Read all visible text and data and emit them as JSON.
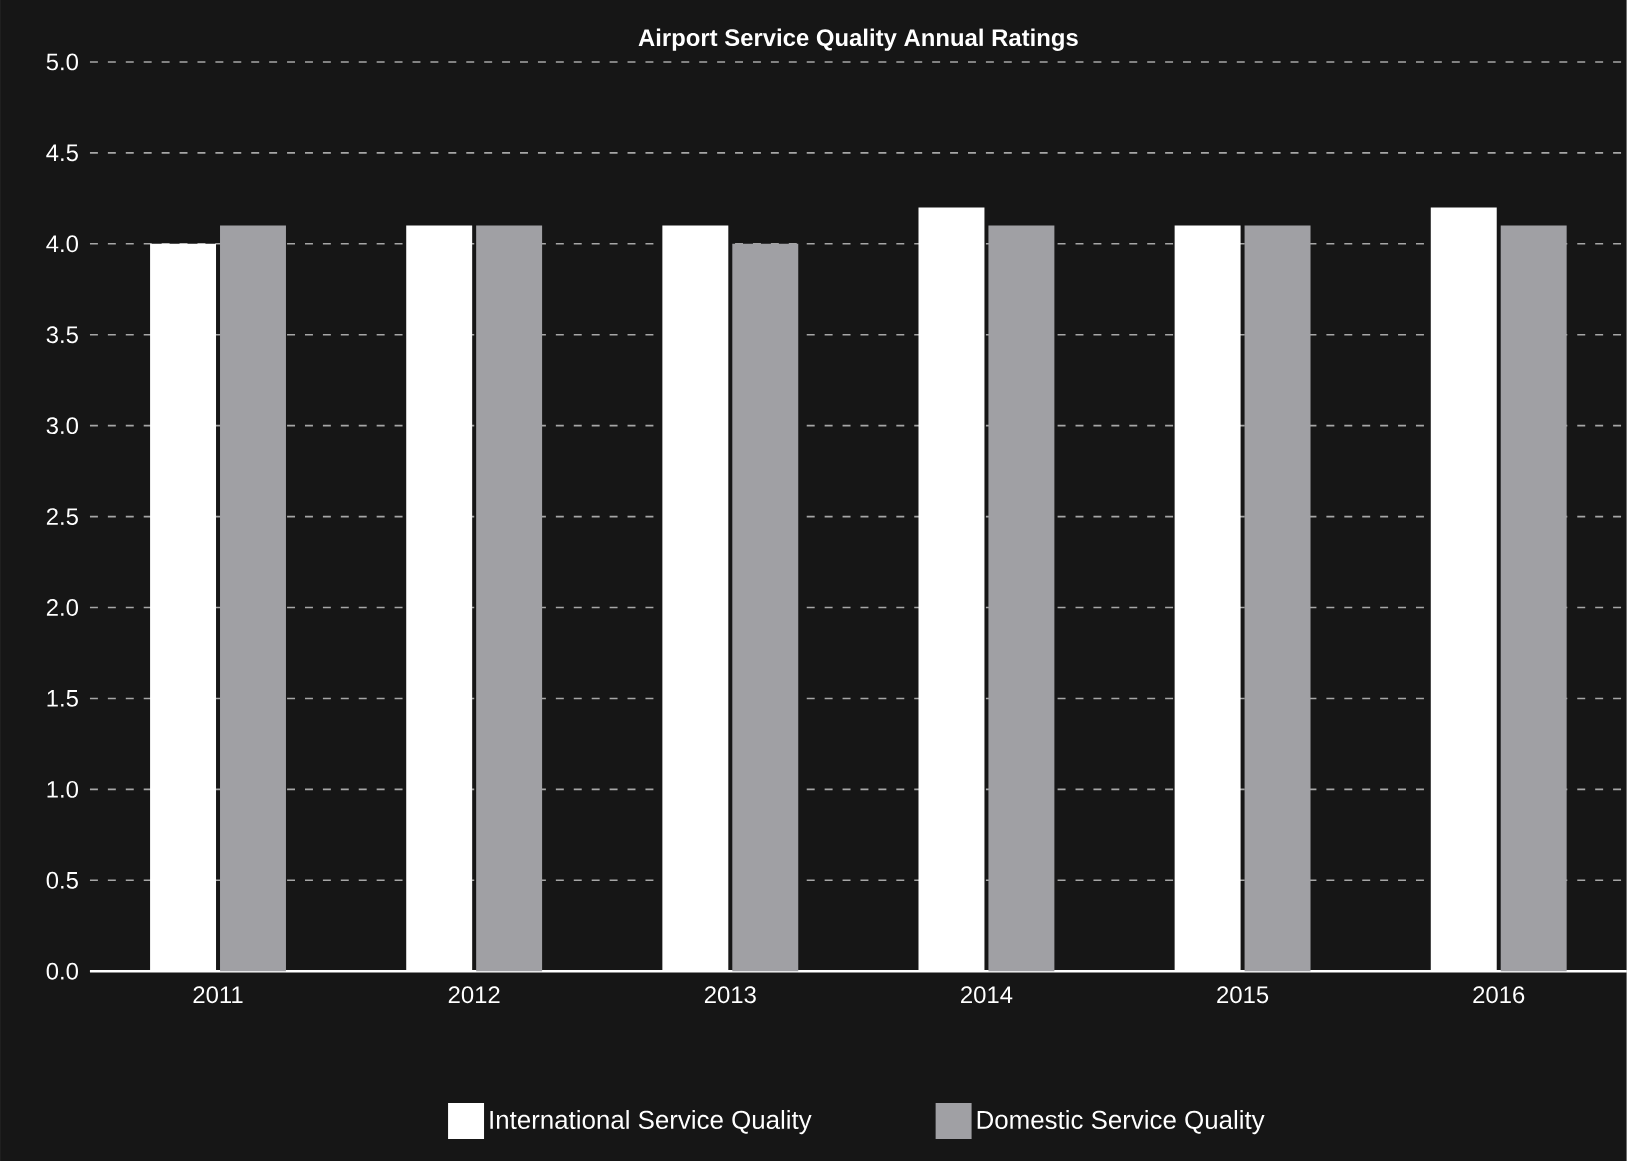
{
  "chart_data": {
    "type": "bar",
    "title": "Airport Service Quality Annual Ratings",
    "categories": [
      "2011",
      "2012",
      "2013",
      "2014",
      "2015",
      "2016"
    ],
    "series": [
      {
        "name": "International Service Quality",
        "color": "#ffffff",
        "values": [
          4.0,
          4.1,
          4.1,
          4.2,
          4.1,
          4.2
        ]
      },
      {
        "name": "Domestic Service Quality",
        "color": "#a0a0a4",
        "values": [
          4.1,
          4.1,
          4.0,
          4.1,
          4.1,
          4.1
        ]
      }
    ],
    "ylim": [
      0,
      5
    ],
    "yticks": [
      {
        "value": 0,
        "label": "0.0"
      },
      {
        "value": 0.5,
        "label": "0.5"
      },
      {
        "value": 1,
        "label": "1.0"
      },
      {
        "value": 1.5,
        "label": "1.5"
      },
      {
        "value": 2,
        "label": "2.0"
      },
      {
        "value": 2.5,
        "label": "2.5"
      },
      {
        "value": 3,
        "label": "3.0"
      },
      {
        "value": 3.5,
        "label": "3.5"
      },
      {
        "value": 4,
        "label": "4.0"
      },
      {
        "value": 4.5,
        "label": "4.5"
      },
      {
        "value": 5,
        "label": "5.0"
      }
    ],
    "grid": "y",
    "legend": "bottom"
  }
}
